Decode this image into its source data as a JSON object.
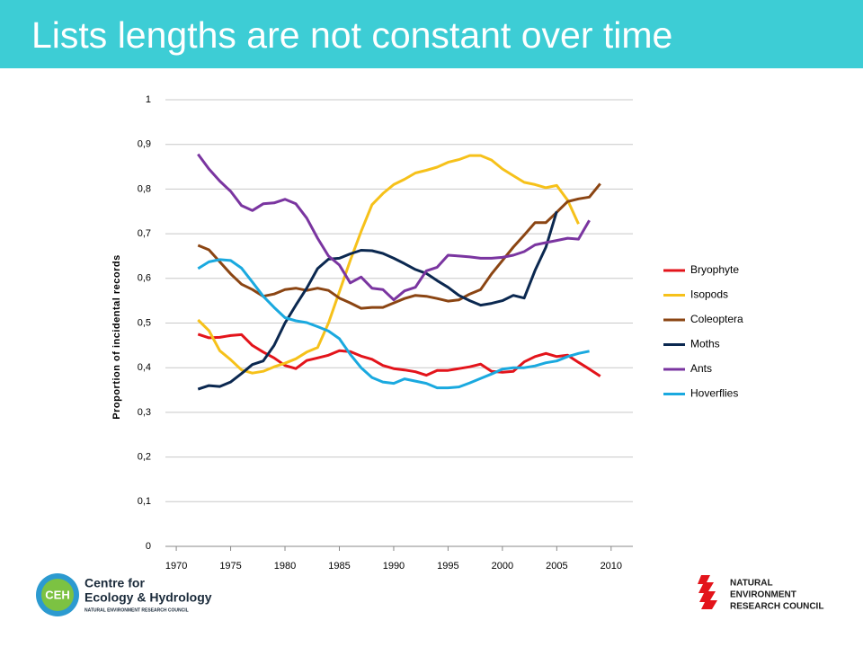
{
  "slide": {
    "title": "Lists lengths are not constant over time"
  },
  "logos": {
    "ceh": {
      "mark": "CEH",
      "lines": [
        "Centre for",
        "Ecology & Hydrology"
      ],
      "sub": "NATURAL ENVIRONMENT RESEARCH COUNCIL"
    },
    "nerc": {
      "lines": [
        "NATURAL",
        "ENVIRONMENT",
        "RESEARCH COUNCIL"
      ]
    }
  },
  "chart_data": {
    "type": "line",
    "ylabel": "Proportion of incidental records",
    "x": [
      1972,
      1973,
      1974,
      1975,
      1976,
      1977,
      1978,
      1979,
      1980,
      1981,
      1982,
      1983,
      1984,
      1985,
      1986,
      1987,
      1988,
      1989,
      1990,
      1991,
      1992,
      1993,
      1994,
      1995,
      1996,
      1997,
      1998,
      1999,
      2000,
      2001,
      2002,
      2003,
      2004,
      2005,
      2006,
      2007,
      2008,
      2009
    ],
    "xlim": [
      1969,
      2012
    ],
    "xticks": [
      1970,
      1975,
      1980,
      1985,
      1990,
      1995,
      2000,
      2005,
      2010
    ],
    "ylim": [
      0,
      1
    ],
    "yticks": [
      0,
      {
        "value": 0.1,
        "label": "0,1"
      },
      {
        "value": 0.2,
        "label": "0,2"
      },
      {
        "value": 0.3,
        "label": "0,3"
      },
      {
        "value": 0.4,
        "label": "0,4"
      },
      {
        "value": 0.5,
        "label": "0,5"
      },
      {
        "value": 0.6,
        "label": "0,6"
      },
      {
        "value": 0.7,
        "label": "0,7"
      },
      {
        "value": 0.8,
        "label": "0,8"
      },
      {
        "value": 0.9,
        "label": "0,9"
      },
      1
    ],
    "grid": true,
    "legend": "right",
    "series": [
      {
        "name": "Bryophyte",
        "color": "#e3141b",
        "values": [
          0.475,
          0.467,
          0.468,
          0.472,
          0.474,
          0.45,
          0.435,
          0.422,
          0.405,
          0.398,
          0.416,
          0.422,
          0.428,
          0.438,
          0.436,
          0.426,
          0.419,
          0.405,
          0.398,
          0.395,
          0.391,
          0.383,
          0.394,
          0.394,
          0.398,
          0.402,
          0.408,
          0.392,
          0.39,
          0.392,
          0.413,
          0.425,
          0.432,
          0.425,
          0.428,
          0.412,
          0.397,
          0.381
        ]
      },
      {
        "name": "Isopods",
        "color": "#f6c11a",
        "values": [
          0.507,
          0.483,
          0.438,
          0.418,
          0.395,
          0.388,
          0.392,
          0.402,
          0.41,
          0.42,
          0.435,
          0.445,
          0.5,
          0.57,
          0.64,
          0.705,
          0.765,
          0.79,
          0.81,
          0.822,
          0.836,
          0.842,
          0.849,
          0.86,
          0.866,
          0.875,
          0.875,
          0.865,
          0.845,
          0.83,
          0.815,
          0.81,
          0.803,
          0.808,
          0.775,
          0.722,
          null,
          null
        ]
      },
      {
        "name": "Coleoptera",
        "color": "#8b4513",
        "values": [
          0.674,
          0.664,
          0.637,
          0.61,
          0.587,
          0.575,
          0.56,
          0.565,
          0.575,
          0.578,
          0.573,
          0.578,
          0.573,
          0.556,
          0.545,
          0.533,
          0.535,
          0.535,
          0.545,
          0.555,
          0.562,
          0.56,
          0.555,
          0.549,
          0.552,
          0.565,
          0.575,
          0.61,
          0.64,
          0.67,
          0.697,
          0.725,
          0.725,
          0.748,
          0.772,
          0.778,
          0.782,
          0.812
        ]
      },
      {
        "name": "Moths",
        "color": "#0b2850",
        "values": [
          0.352,
          0.36,
          0.358,
          0.368,
          0.387,
          0.407,
          0.415,
          0.45,
          0.5,
          0.54,
          0.578,
          0.622,
          0.643,
          0.645,
          0.655,
          0.663,
          0.662,
          0.656,
          0.645,
          0.633,
          0.62,
          0.611,
          0.595,
          0.58,
          0.562,
          0.55,
          0.54,
          0.544,
          0.55,
          0.562,
          0.556,
          0.618,
          0.67,
          0.75,
          null,
          null,
          null,
          null
        ]
      },
      {
        "name": "Ants",
        "color": "#7a35a0",
        "values": [
          0.878,
          0.845,
          0.818,
          0.795,
          0.763,
          0.752,
          0.767,
          0.769,
          0.777,
          0.767,
          0.735,
          0.69,
          0.65,
          0.63,
          0.59,
          0.603,
          0.578,
          0.575,
          0.552,
          0.572,
          0.58,
          0.617,
          0.625,
          0.652,
          0.65,
          0.648,
          0.645,
          0.645,
          0.647,
          0.652,
          0.66,
          0.675,
          0.68,
          0.685,
          0.69,
          0.688,
          0.73,
          null
        ]
      },
      {
        "name": "Hoverflies",
        "color": "#1aa9df",
        "values": [
          0.622,
          0.637,
          0.642,
          0.64,
          0.623,
          0.592,
          0.56,
          0.535,
          0.512,
          0.505,
          0.501,
          0.492,
          0.482,
          0.465,
          0.43,
          0.4,
          0.378,
          0.368,
          0.365,
          0.375,
          0.37,
          0.365,
          0.355,
          0.355,
          0.357,
          0.366,
          0.376,
          0.386,
          0.397,
          0.4,
          0.4,
          0.404,
          0.411,
          0.415,
          0.425,
          0.432,
          0.437,
          null
        ]
      }
    ]
  }
}
